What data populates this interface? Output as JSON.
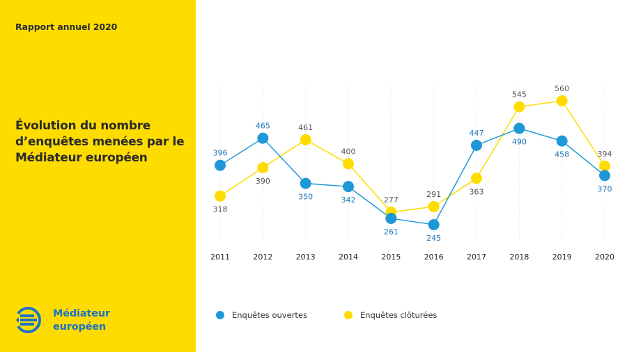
{
  "sidebar": {
    "report_label": "Rapport annuel 2020",
    "title": "Évolution du nombre d’enquêtes menées par le Médiateur européen",
    "logo_line1": "Médiateur",
    "logo_line2": "européen",
    "background": "#ffdc00"
  },
  "colors": {
    "ouvertes": "#1e98d7",
    "ouvertes_label": "#1a73b8",
    "clotures": "#ffdc00",
    "clotures_label": "#555555",
    "grid": "#e4e4e4"
  },
  "legend": {
    "ouvertes": "Enquêtes ouvertes",
    "clotures": "Enquêtes clôturées"
  },
  "chart_data": {
    "type": "line",
    "title": "Évolution du nombre d’enquêtes menées par le Médiateur européen",
    "xlabel": "",
    "ylabel": "",
    "categories": [
      "2011",
      "2012",
      "2013",
      "2014",
      "2015",
      "2016",
      "2017",
      "2018",
      "2019",
      "2020"
    ],
    "series": [
      {
        "name": "Enquêtes ouvertes",
        "values": [
          396,
          465,
          350,
          342,
          261,
          245,
          447,
          490,
          458,
          370
        ],
        "label_positions": [
          "above",
          "above",
          "below",
          "below",
          "below",
          "below",
          "above",
          "below",
          "below",
          "below"
        ]
      },
      {
        "name": "Enquêtes clôturées",
        "values": [
          318,
          390,
          461,
          400,
          277,
          291,
          363,
          545,
          560,
          394
        ],
        "label_positions": [
          "below",
          "below",
          "above",
          "above",
          "above",
          "above",
          "below",
          "above",
          "above",
          "above"
        ]
      }
    ],
    "ylim": [
      180,
      620
    ],
    "grid": "vertical",
    "legend_position": "bottom"
  }
}
